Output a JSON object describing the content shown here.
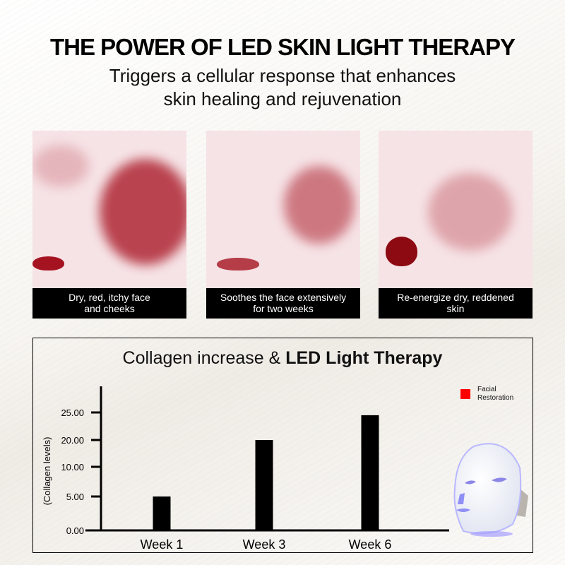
{
  "header": {
    "title_regular": "THE POWER OF LED ",
    "title_bold": "SKIN LIGHT THERAPY",
    "subtitle_line1": "Triggers a cellular response that enhances",
    "subtitle_line2": "skin healing and rejuvenation"
  },
  "photos": [
    {
      "caption_line1": "Dry, red, itchy face",
      "caption_line2": "and cheeks"
    },
    {
      "caption_line1": "Soothes the face extensively",
      "caption_line2": "for two weeks"
    },
    {
      "caption_line1": "Re-energize dry, reddened",
      "caption_line2": "skin"
    }
  ],
  "chart_data": {
    "type": "bar",
    "title_regular": "Collagen increase & ",
    "title_bold": "LED Light Therapy",
    "categories": [
      "Week 1",
      "Week 3",
      "Week 6"
    ],
    "series": [
      {
        "name": "Facial Restoration",
        "values": [
          5,
          20,
          24.5
        ],
        "color": "#000000"
      }
    ],
    "legend": {
      "label_line1": "Facial",
      "label_line2": "Restoration",
      "color": "#ff0000",
      "placement": "top-right"
    },
    "ylabel": "(Collagen levels)",
    "yticks": [
      0,
      5,
      10,
      20,
      25
    ],
    "ytick_labels": [
      "0.00",
      "5.00",
      "10.00",
      "20.00",
      "25.00"
    ],
    "grid": false
  }
}
